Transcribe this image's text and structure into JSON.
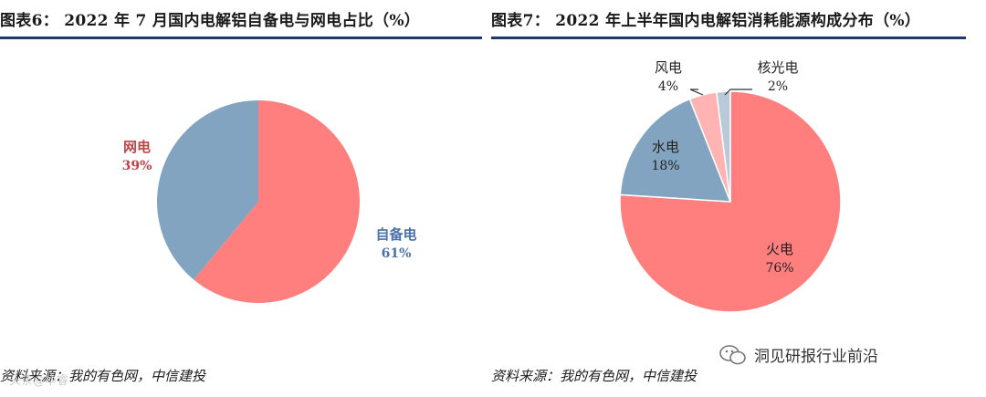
{
  "left": {
    "title": "图表6： 2022 年 7 月国内电解铝自备电与网电占比（%）",
    "source": "资料来源：我的有色网，中信建投"
  },
  "right": {
    "title": "图表7： 2022 年上半年国内电解铝消耗能源构成分布（%）",
    "source": "资料来源：我的有色网，中信建投"
  },
  "watermark": {
    "right_text": "洞见研报行业前沿",
    "left_text": "头条@华睿"
  },
  "chart_data": [
    {
      "type": "pie",
      "title": "2022 年 7 月国内电解铝自备电与网电占比（%）",
      "slices": [
        {
          "name": "自备电",
          "value": 61,
          "label": "61%",
          "color": "#ff7f7f",
          "label_color": "#4a73a8"
        },
        {
          "name": "网电",
          "value": 39,
          "label": "39%",
          "color": "#82a4c0",
          "label_color": "#c0434a"
        }
      ]
    },
    {
      "type": "pie",
      "title": "2022 年上半年国内电解铝消耗能源构成分布（%）",
      "slices": [
        {
          "name": "火电",
          "value": 76,
          "label": "76%",
          "color": "#ff7f7f"
        },
        {
          "name": "水电",
          "value": 18,
          "label": "18%",
          "color": "#82a4c0"
        },
        {
          "name": "风电",
          "value": 4,
          "label": "4%",
          "color": "#ffb3b3"
        },
        {
          "name": "核光电",
          "value": 2,
          "label": "2%",
          "color": "#b9c9d8"
        }
      ]
    }
  ]
}
